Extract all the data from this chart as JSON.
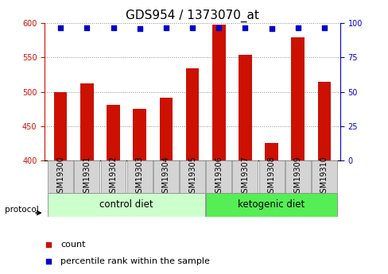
{
  "title": "GDS954 / 1373070_at",
  "samples": [
    "GSM19300",
    "GSM19301",
    "GSM19302",
    "GSM19303",
    "GSM19304",
    "GSM19305",
    "GSM19306",
    "GSM19307",
    "GSM19308",
    "GSM19309",
    "GSM19310"
  ],
  "counts": [
    500,
    512,
    481,
    475,
    491,
    534,
    598,
    554,
    425,
    579,
    515
  ],
  "percentile_ranks": [
    97,
    97,
    97,
    96,
    97,
    97,
    97,
    97,
    96,
    97,
    97
  ],
  "bar_color": "#cc1100",
  "dot_color": "#0000cc",
  "ylim_left": [
    400,
    600
  ],
  "ylim_right": [
    0,
    100
  ],
  "yticks_left": [
    400,
    450,
    500,
    550,
    600
  ],
  "yticks_right": [
    0,
    25,
    50,
    75,
    100
  ],
  "groups": [
    {
      "label": "control diet",
      "start": 0,
      "end": 5,
      "color": "#ccffcc"
    },
    {
      "label": "ketogenic diet",
      "start": 6,
      "end": 10,
      "color": "#55ee55"
    }
  ],
  "protocol_label": "protocol",
  "legend_count_label": "count",
  "legend_pct_label": "percentile rank within the sample",
  "background_color": "#ffffff",
  "plot_bg_color": "#ffffff",
  "grid_color": "#888888",
  "bar_width": 0.5,
  "title_fontsize": 11,
  "tick_fontsize": 7,
  "group_label_fontsize": 8.5,
  "legend_fontsize": 8
}
